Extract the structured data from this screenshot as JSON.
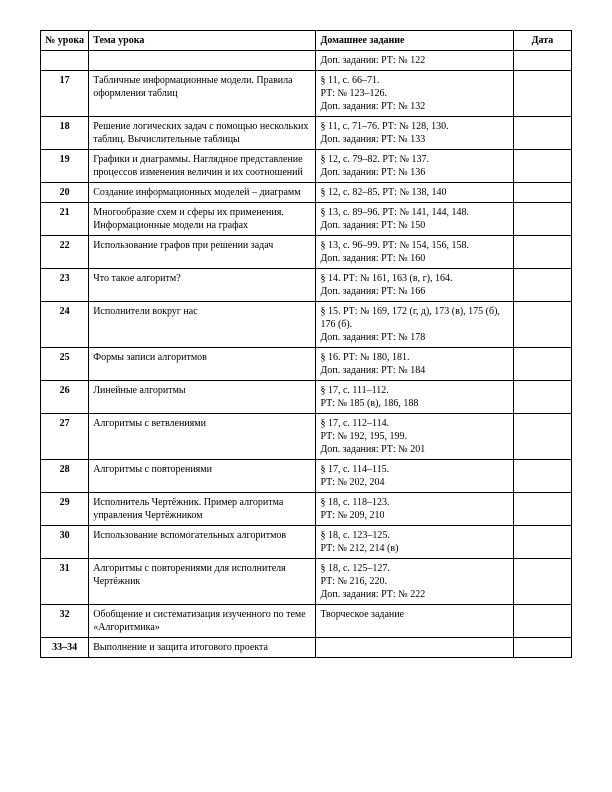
{
  "headers": {
    "num": "№ урока",
    "topic": "Тема урока",
    "hw": "Домашнее задание",
    "date": "Дата"
  },
  "rows": [
    {
      "num": "",
      "topic": "",
      "hw": "Доп. задания: РТ: № 122",
      "date": ""
    },
    {
      "num": "17",
      "topic": "Табличные информационные модели. Правила оформления таблиц",
      "hw": "§ 11, с. 66–71.\nРТ: № 123–126.\nДоп. задания: РТ: № 132",
      "date": ""
    },
    {
      "num": "18",
      "topic": "Решение логических задач с помощью нескольких таблиц. Вычислительные таблицы",
      "hw": "§ 11, с. 71–76. РТ: № 128, 130.\nДоп. задания: РТ: № 133",
      "date": ""
    },
    {
      "num": "19",
      "topic": "Графики и диаграммы. Наглядное представление процессов изменения величин и их соотношений",
      "hw": "§ 12, с. 79–82. РТ: № 137.\nДоп. задания: РТ: № 136",
      "date": ""
    },
    {
      "num": "20",
      "topic": "Создание информационных моделей – диаграмм",
      "hw": "§ 12, с. 82–85. РТ: № 138, 140",
      "date": ""
    },
    {
      "num": "21",
      "topic": "Многообразие схем и сферы их применения. Информационные модели на графах",
      "hw": "§ 13, с. 89–96. РТ: № 141, 144, 148.\nДоп. задания: РТ: № 150",
      "date": ""
    },
    {
      "num": "22",
      "topic": "Использование графов при решении задач",
      "hw": "§ 13, с. 96–99. РТ: № 154, 156, 158.\nДоп. задания: РТ: № 160",
      "date": ""
    },
    {
      "num": "23",
      "topic": "Что такое алгоритм?",
      "hw": "§ 14. РТ: № 161, 163 (в, г), 164.\nДоп. задания: РТ: № 166",
      "date": ""
    },
    {
      "num": "24",
      "topic": "Исполнители вокруг нас",
      "hw": "§ 15. РТ: № 169, 172 (г, д), 173 (в), 175 (б), 176 (б).\nДоп. задания: РТ: № 178",
      "date": ""
    },
    {
      "num": "25",
      "topic": "Формы записи алгоритмов",
      "hw": "§ 16. РТ: № 180, 181.\nДоп. задания: РТ: № 184",
      "date": ""
    },
    {
      "num": "26",
      "topic": "Линейные алгоритмы",
      "hw": "§ 17, с. 111–112.\nРТ: № 185 (в), 186, 188",
      "date": ""
    },
    {
      "num": "27",
      "topic": "Алгоритмы с ветвлениями",
      "hw": "§ 17, с. 112–114.\nРТ: № 192, 195, 199.\nДоп. задания: РТ: № 201",
      "date": ""
    },
    {
      "num": "28",
      "topic": "Алгоритмы с повторениями",
      "hw": "§ 17, с. 114–115.\nРТ: № 202, 204",
      "date": ""
    },
    {
      "num": "29",
      "topic": "Исполнитель Чертёжник. Пример алгоритма управления Чертёжником",
      "hw": "§ 18, с. 118–123.\nРТ: № 209, 210",
      "date": ""
    },
    {
      "num": "30",
      "topic": "Использование вспомогательных алгоритмов",
      "hw": "§ 18, с. 123–125.\nРТ: № 212, 214 (в)",
      "date": ""
    },
    {
      "num": "31",
      "topic": "Алгоритмы с повторениями для исполнителя Чертёжник",
      "hw": "§ 18, с. 125–127.\nРТ: № 216, 220.\nДоп. задания: РТ: № 222",
      "date": ""
    },
    {
      "num": "32",
      "topic": "Обобщение и систематизация изученного по теме «Алгоритмика»",
      "hw": "Творческое задание",
      "date": ""
    },
    {
      "num": "33–34",
      "topic": "Выполнение и защита итогового проекта",
      "hw": "",
      "date": ""
    }
  ]
}
